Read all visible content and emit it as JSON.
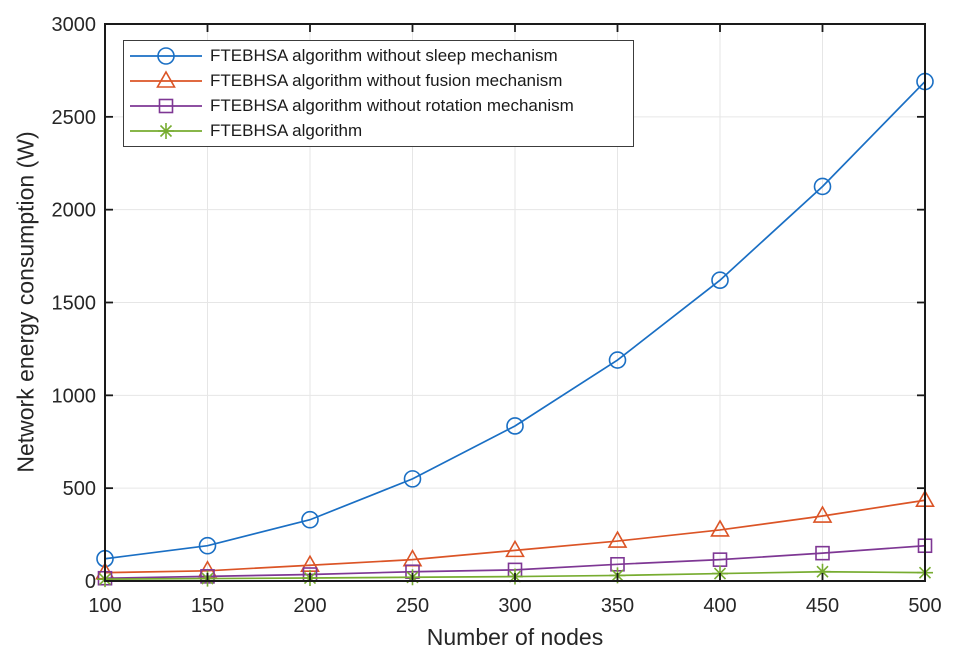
{
  "chart_data": {
    "type": "line",
    "title": "",
    "xlabel": "Number of nodes",
    "ylabel": "Network energy consumption (W)",
    "x": [
      100,
      150,
      200,
      250,
      300,
      350,
      400,
      450,
      500
    ],
    "xlim": [
      100,
      500
    ],
    "ylim": [
      0,
      3000
    ],
    "xticks": [
      100,
      150,
      200,
      250,
      300,
      350,
      400,
      450,
      500
    ],
    "yticks": [
      0,
      500,
      1000,
      1500,
      2000,
      2500,
      3000
    ],
    "grid": true,
    "legend_position": "top-left-inside",
    "series": [
      {
        "name": "FTEBHSA algorithm without sleep mechanism",
        "marker": "circle",
        "color": "#1A6FC4",
        "values": [
          120,
          190,
          330,
          550,
          835,
          1190,
          1620,
          2125,
          2690
        ]
      },
      {
        "name": "FTEBHSA algorithm without fusion mechanism",
        "marker": "triangle",
        "color": "#DB5426",
        "values": [
          45,
          55,
          85,
          115,
          165,
          215,
          275,
          350,
          435
        ]
      },
      {
        "name": "FTEBHSA algorithm without rotation mechanism",
        "marker": "square",
        "color": "#7E3794",
        "values": [
          15,
          25,
          35,
          50,
          60,
          90,
          115,
          150,
          190
        ]
      },
      {
        "name": "FTEBHSA algorithm",
        "marker": "asterisk",
        "color": "#77AC30",
        "values": [
          10,
          13,
          16,
          20,
          24,
          30,
          40,
          50,
          45
        ]
      }
    ],
    "colors": {
      "grid": "#E6E6E6",
      "axis": "#1A1A1A",
      "tick_label": "#262626",
      "legend_border": "#3C3C3C",
      "background": "#FFFFFF"
    }
  }
}
